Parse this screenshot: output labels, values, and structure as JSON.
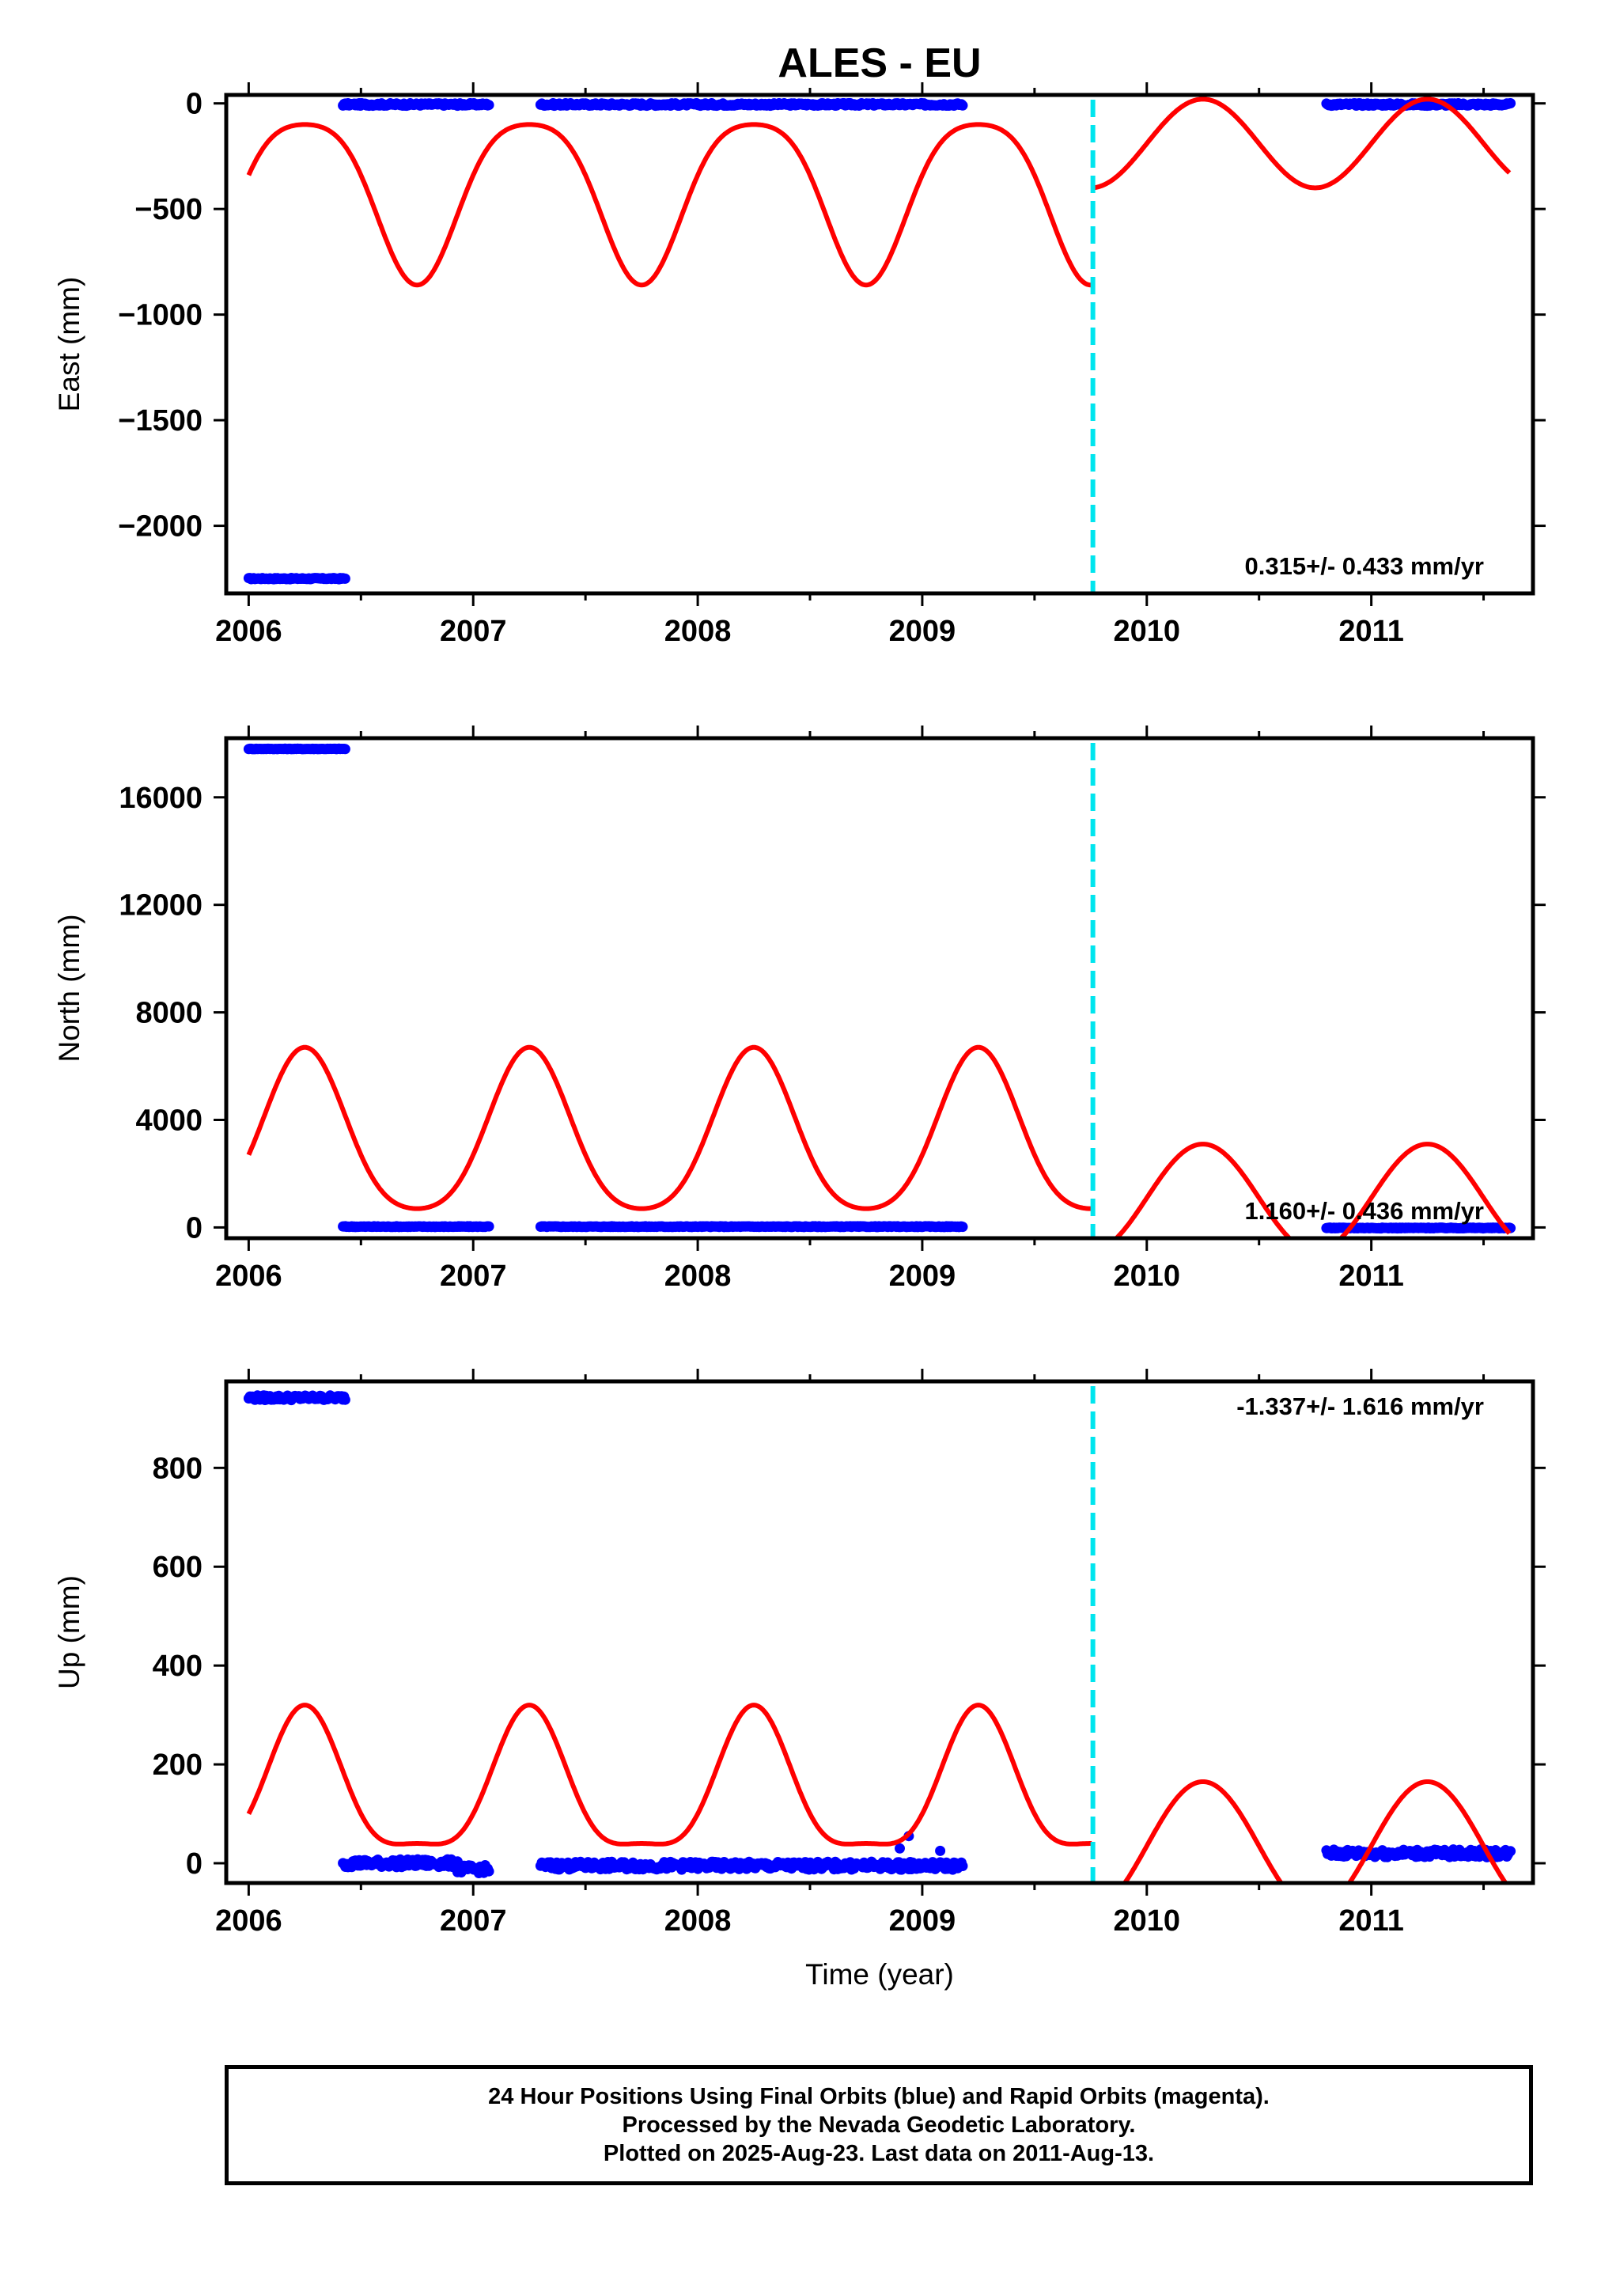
{
  "title": "ALES - EU",
  "colors": {
    "final_orbits": "#0000ff",
    "model_curve": "#ff0000",
    "equipment_change": "#00e5ee",
    "frame": "#000000"
  },
  "chart_data": [
    {
      "type": "scatter",
      "panel": "east",
      "ylabel": "East (mm)",
      "xlabel": "",
      "xlim": [
        2005.9,
        2011.72
      ],
      "ylim": [
        -2320,
        40
      ],
      "xticks": [
        2006,
        2007,
        2008,
        2009,
        2010,
        2011
      ],
      "xtick_labels": [
        "2006",
        "2007",
        "2008",
        "2009",
        "2010",
        "2011"
      ],
      "yticks": [
        0,
        -500,
        -1000,
        -1500,
        -2000
      ],
      "ytick_labels": [
        "0",
        "−500",
        "−1000",
        "−1500",
        "−2000"
      ],
      "rate_text": "0.315+/- 0.433 mm/yr",
      "rate_position": "bottom-right",
      "equipment_change_year": 2009.76,
      "data_segments": [
        {
          "x0": 2006.0,
          "x1": 2006.43,
          "y": -2250,
          "scatter": 3
        },
        {
          "x0": 2006.42,
          "x1": 2006.93,
          "y": -5,
          "scatter": 6
        },
        {
          "x0": 2006.93,
          "x1": 2007.07,
          "y": -5,
          "scatter": 6
        },
        {
          "x0": 2007.3,
          "x1": 2009.18,
          "y": -5,
          "scatter": 6
        },
        {
          "x0": 2010.8,
          "x1": 2011.62,
          "y": -5,
          "scatter": 6
        }
      ],
      "model": {
        "offset": -410,
        "amplitude": 380,
        "amplitude2": 70,
        "phase": 2006.0,
        "offset_after": -190,
        "amplitude_after": 210
      }
    },
    {
      "type": "scatter",
      "panel": "north",
      "ylabel": "North (mm)",
      "xlabel": "",
      "xlim": [
        2005.9,
        2011.72
      ],
      "ylim": [
        -400,
        18200
      ],
      "xticks": [
        2006,
        2007,
        2008,
        2009,
        2010,
        2011
      ],
      "xtick_labels": [
        "2006",
        "2007",
        "2008",
        "2009",
        "2010",
        "2011"
      ],
      "yticks": [
        0,
        4000,
        8000,
        12000,
        16000
      ],
      "ytick_labels": [
        "0",
        "4000",
        "8000",
        "12000",
        "16000"
      ],
      "rate_text": "1.160+/- 0.436 mm/yr",
      "rate_position": "bottom-right",
      "equipment_change_year": 2009.76,
      "data_segments": [
        {
          "x0": 2006.0,
          "x1": 2006.43,
          "y": 17800,
          "scatter": 10
        },
        {
          "x0": 2006.42,
          "x1": 2006.93,
          "y": 30,
          "scatter": 15
        },
        {
          "x0": 2006.93,
          "x1": 2007.07,
          "y": 30,
          "scatter": 15
        },
        {
          "x0": 2007.3,
          "x1": 2009.18,
          "y": 30,
          "scatter": 15
        },
        {
          "x0": 2010.8,
          "x1": 2011.62,
          "y": -20,
          "scatter": 15
        }
      ],
      "model": {
        "offset": 3200,
        "amplitude": 3000,
        "amplitude2": -500,
        "phase": 2006.0,
        "offset_after": 1100,
        "amplitude_after": 2000
      }
    },
    {
      "type": "scatter",
      "panel": "up",
      "ylabel": "Up (mm)",
      "xlabel": "Time (year)",
      "xlim": [
        2005.9,
        2011.72
      ],
      "ylim": [
        -40,
        975
      ],
      "xticks": [
        2006,
        2007,
        2008,
        2009,
        2010,
        2011
      ],
      "xtick_labels": [
        "2006",
        "2007",
        "2008",
        "2009",
        "2010",
        "2011"
      ],
      "yticks": [
        0,
        200,
        400,
        600,
        800
      ],
      "ytick_labels": [
        "0",
        "200",
        "400",
        "600",
        "800"
      ],
      "rate_text": "-1.337+/- 1.616 mm/yr",
      "rate_position": "top-right",
      "equipment_change_year": 2009.76,
      "data_segments": [
        {
          "x0": 2006.0,
          "x1": 2006.43,
          "y": 942,
          "scatter": 5
        },
        {
          "x0": 2006.42,
          "x1": 2006.93,
          "y": 0,
          "scatter": 8
        },
        {
          "x0": 2006.93,
          "x1": 2007.07,
          "y": -12,
          "scatter": 8
        },
        {
          "x0": 2007.3,
          "x1": 2009.18,
          "y": -5,
          "scatter": 8
        },
        {
          "x0": 2010.8,
          "x1": 2011.62,
          "y": 20,
          "scatter": 8
        }
      ],
      "outliers": [
        [
          2008.94,
          55
        ],
        [
          2008.9,
          30
        ],
        [
          2009.08,
          25
        ]
      ],
      "model": {
        "offset": 140,
        "amplitude": 140,
        "amplitude2": -40,
        "phase": 2006.0,
        "offset_after": 35,
        "amplitude_after": 130
      }
    }
  ],
  "footer": {
    "line1": "24 Hour Positions Using Final Orbits (blue) and Rapid Orbits (magenta).",
    "line2": "Processed by the Nevada Geodetic Laboratory.",
    "line3": "Plotted on 2025-Aug-23. Last data on 2011-Aug-13."
  }
}
